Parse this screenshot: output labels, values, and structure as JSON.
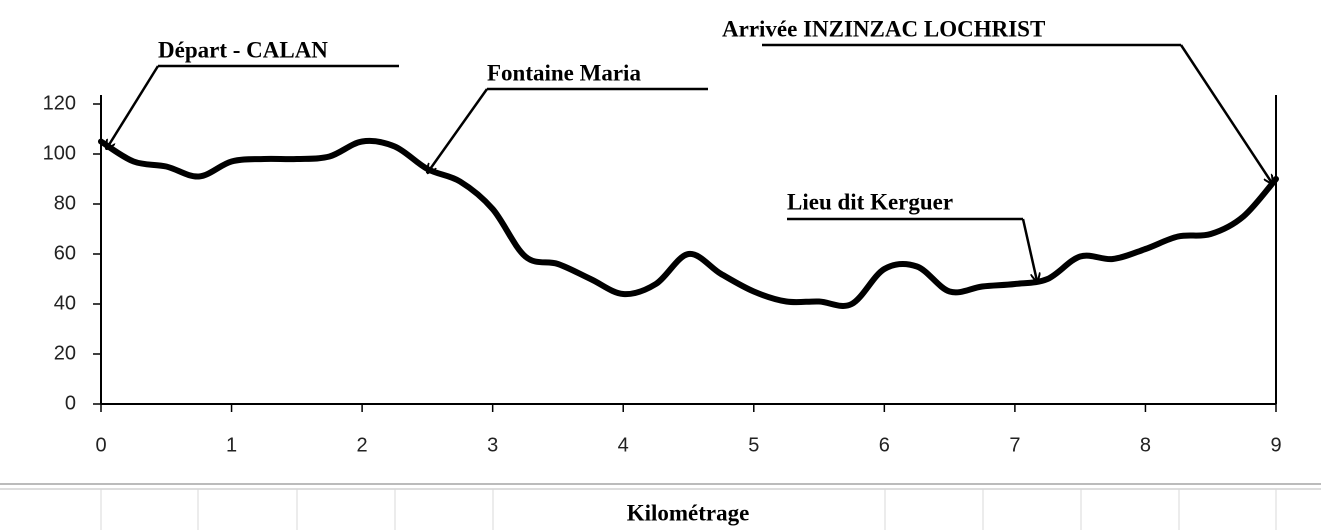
{
  "chart_data": {
    "type": "line",
    "x_label": "Kilométrage",
    "x": [
      0,
      0.25,
      0.5,
      0.75,
      1,
      1.25,
      1.5,
      1.75,
      2,
      2.25,
      2.5,
      2.75,
      3,
      3.25,
      3.5,
      3.75,
      4,
      4.25,
      4.5,
      4.75,
      5,
      5.25,
      5.5,
      5.75,
      6,
      6.25,
      6.5,
      6.75,
      7,
      7.25,
      7.5,
      7.75,
      8,
      8.25,
      8.5,
      8.75,
      9
    ],
    "values": [
      105,
      97,
      95,
      91,
      97,
      98,
      98,
      99,
      105,
      103,
      94,
      89,
      78,
      59,
      56,
      50,
      44,
      48,
      60,
      52,
      45,
      41,
      41,
      40,
      54,
      55,
      45,
      47,
      48,
      50,
      59,
      58,
      62,
      67,
      68,
      75,
      90
    ],
    "color": "#000000",
    "xlim": [
      0,
      9
    ],
    "xticks": [
      0,
      1,
      2,
      3,
      4,
      5,
      6,
      7,
      8,
      9
    ],
    "ylim": [
      0,
      120
    ],
    "yticks": [
      0,
      20,
      40,
      60,
      80,
      100,
      120
    ],
    "annotations": [
      "Départ - CALAN",
      "Fontaine Maria",
      "Arrivée INZINZAC LOCHRIST",
      "Lieu dit Kerguer"
    ]
  }
}
